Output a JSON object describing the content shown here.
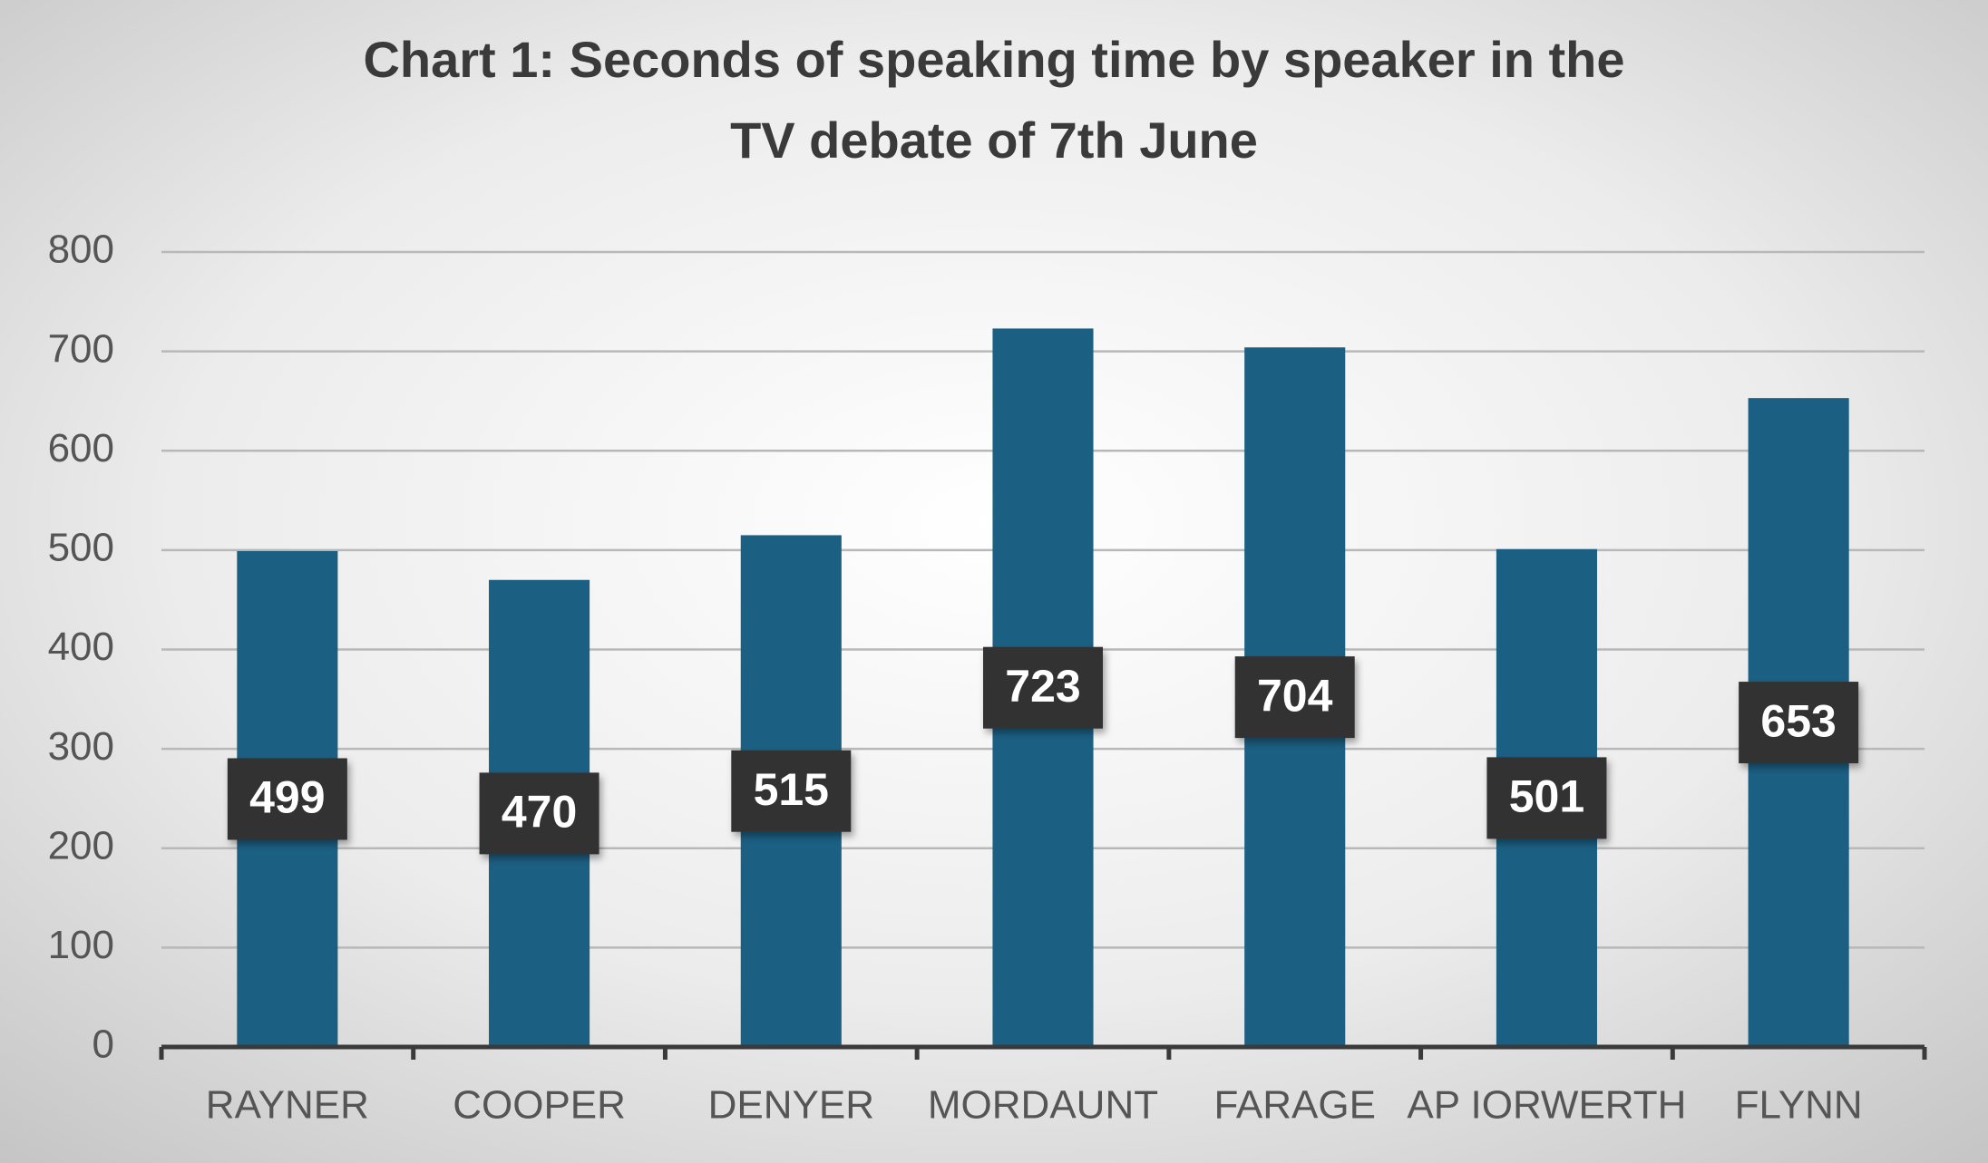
{
  "chart_data": {
    "type": "bar",
    "title": "Chart 1: Seconds of speaking time by speaker in the TV debate of 7th June",
    "categories": [
      "RAYNER",
      "COOPER",
      "DENYER",
      "MORDAUNT",
      "FARAGE",
      "AP IORWERTH",
      "FLYNN"
    ],
    "values": [
      499,
      470,
      515,
      723,
      704,
      501,
      653
    ],
    "color": "#1b5f82",
    "ylim": [
      0,
      800
    ],
    "yticks": [
      0,
      100,
      200,
      300,
      400,
      500,
      600,
      700,
      800
    ],
    "grid": true,
    "data_labels": true
  }
}
